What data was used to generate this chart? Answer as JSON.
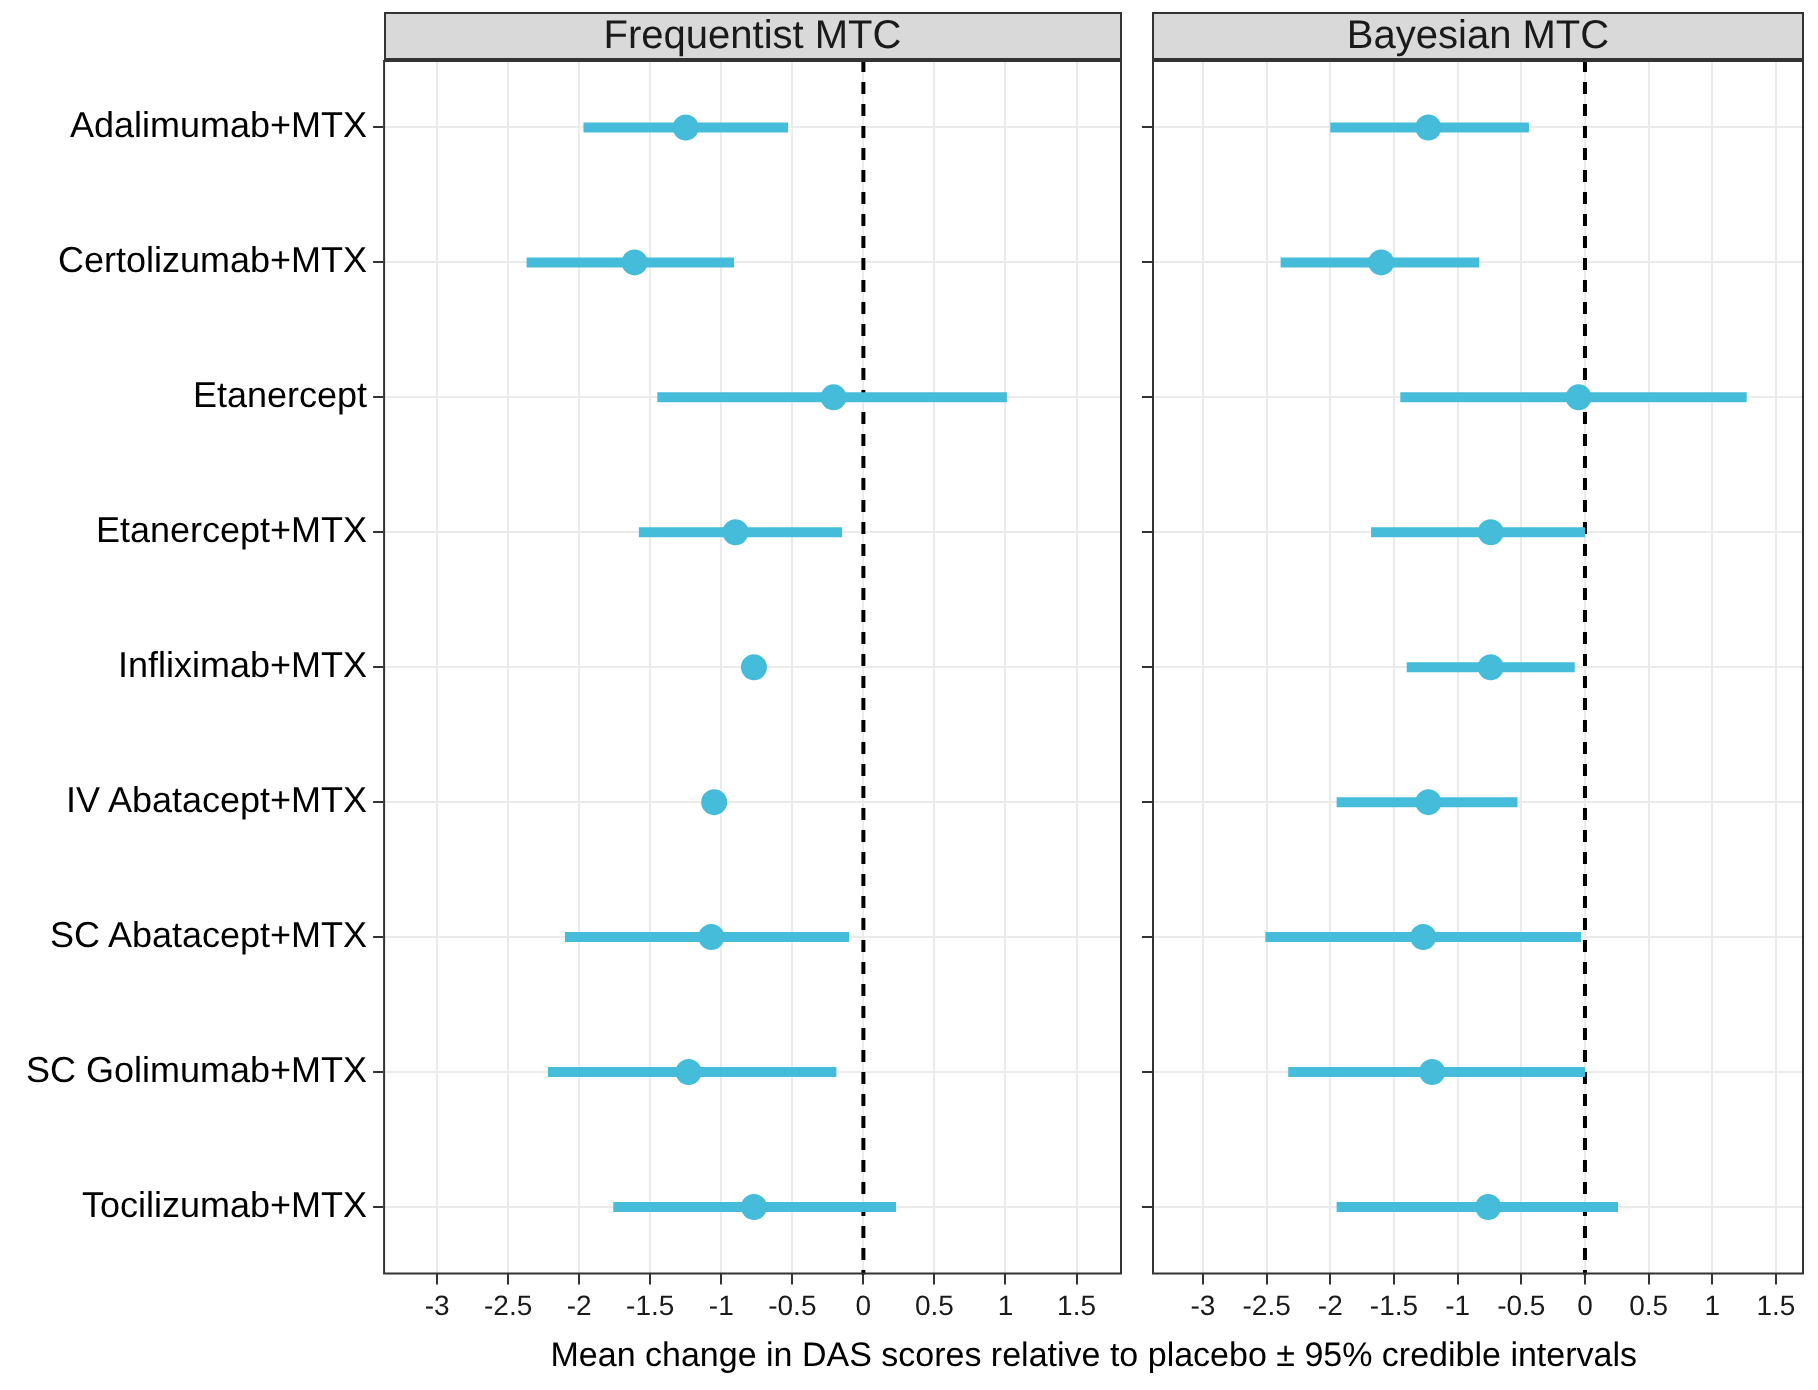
{
  "chart_data": [
    {
      "type": "scatter",
      "orientation": "horizontal",
      "title": "Frequentist MTC",
      "xlabel": "Mean change in DAS scores relative to placebo ± 95% credible intervals",
      "categories": [
        "Adalimumab+MTX",
        "Certolizumab+MTX",
        "Etanercept",
        "Etanercept+MTX",
        "Infliximab+MTX",
        "IV Abatacept+MTX",
        "SC Abatacept+MTX",
        "SC Golimumab+MTX",
        "Tocilizumab+MTX"
      ],
      "values": [
        -1.25,
        -1.61,
        -0.21,
        -0.9,
        -0.77,
        -1.05,
        -1.07,
        -1.23,
        -0.77
      ],
      "errors": [
        [
          -1.97,
          -0.53
        ],
        [
          -2.37,
          -0.91
        ],
        [
          -1.45,
          1.01
        ],
        [
          -1.58,
          -0.15
        ],
        null,
        null,
        [
          -2.1,
          -0.1
        ],
        [
          -2.22,
          -0.19
        ],
        [
          -1.76,
          0.23
        ]
      ],
      "color": "#45bcd9",
      "marker": "circle",
      "xlim": [
        -3.38,
        1.82
      ],
      "xticks": [
        -3,
        -2.5,
        -2,
        -1.5,
        -1,
        -0.5,
        0,
        0.5,
        1,
        1.5
      ],
      "grid": true,
      "ref_lines": [
        {
          "axis": "x",
          "value": 0,
          "color": "#000000",
          "line_style": "dashed"
        }
      ]
    },
    {
      "type": "scatter",
      "orientation": "horizontal",
      "title": "Bayesian MTC",
      "tick_labels": "x",
      "categories": [
        null,
        null,
        null,
        null,
        null,
        null,
        null,
        null,
        null
      ],
      "values": [
        -1.23,
        -1.6,
        -0.05,
        -0.74,
        -0.74,
        -1.23,
        -1.27,
        -1.2,
        -0.76
      ],
      "errors": [
        [
          -2.0,
          -0.44
        ],
        [
          -2.39,
          -0.83
        ],
        [
          -1.45,
          1.27
        ],
        [
          -1.68,
          0
        ],
        [
          -1.4,
          -0.08
        ],
        [
          -1.95,
          -0.53
        ],
        [
          -2.51,
          -0.03
        ],
        [
          -2.33,
          0
        ],
        [
          -1.95,
          0.26
        ]
      ],
      "color": "#45bcd9",
      "marker": "circle",
      "xlim": [
        -3.4,
        1.72
      ],
      "xticks": [
        -3,
        -2.5,
        -2,
        -1.5,
        -1,
        -0.5,
        0,
        0.5,
        1,
        1.5
      ],
      "grid": true,
      "ref_lines": [
        {
          "axis": "x",
          "value": 0,
          "color": "#000000",
          "line_style": "dashed"
        }
      ]
    }
  ]
}
